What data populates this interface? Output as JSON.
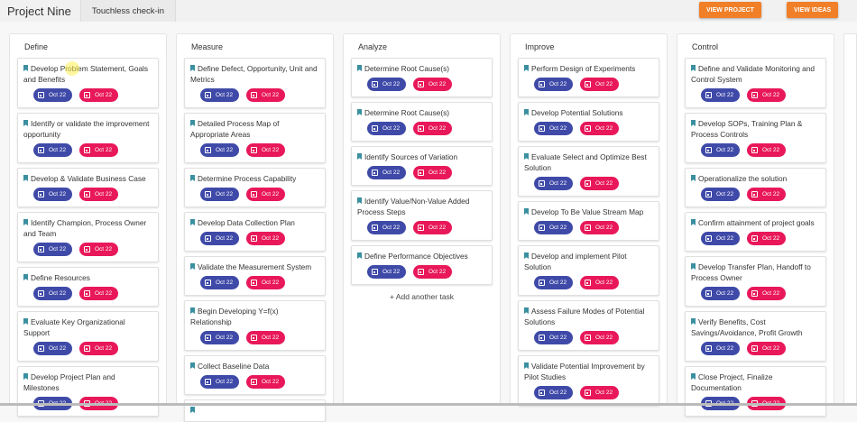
{
  "header": {
    "project": "Project Nine",
    "tab": "Touchless check-in",
    "view_project": "VIEW PROJECT",
    "view_ideas": "VIEW IDEAS"
  },
  "colors": {
    "accent": "#f07f28",
    "start_chip": "#3f4aa8",
    "end_chip": "#e8185a"
  },
  "columns": [
    {
      "name": "Define",
      "cards": [
        "Develop Problem Statement, Goals and Benefits",
        "Identify or validate the improvement opportunity",
        "Develop & Validate Business Case",
        "Identify Champion, Process Owner and Team",
        "Define Resources",
        "Evaluate Key Organizational Support",
        "Develop Project Plan and Milestones"
      ]
    },
    {
      "name": "Measure",
      "cards": [
        "Define Defect, Opportunity, Unit and Metrics",
        "Detailed Process Map of Appropriate Areas",
        "Determine Process Capability",
        "Develop Data Collection Plan",
        "Validate the Measurement System",
        "Begin Developing Y=f(x) Relationship",
        "Collect Baseline Data",
        ""
      ]
    },
    {
      "name": "Analyze",
      "cards": [
        "Determine Root Cause(s)",
        "Determine Root Cause(s)",
        "Identify Sources of Variation",
        "Identify Value/Non-Value Added Process Steps",
        "Define Performance Objectives"
      ],
      "add": "+ Add another task"
    },
    {
      "name": "Improve",
      "cards": [
        "Perform Design of Experiments",
        "Develop Potential Solutions",
        "Evaluate Select and Optimize Best Solution",
        "Develop To Be Value Stream Map",
        "Develop and implement Pilot Solution",
        "Assess Failure Modes of Potential Solutions",
        "Validate Potential Improvement by Pilot Studies"
      ]
    },
    {
      "name": "Control",
      "cards": [
        "Define and Validate Monitoring and Control System",
        "Develop SOPs, Training Plan & Process Controls",
        "Operationalize the solution",
        "Confirm attainment of project goals",
        "Develop Transfer Plan, Handoff to Process Owner",
        "Verify Benefits, Cost Savings/Avoidance, Profit Growth",
        "Close Project, Finalize Documentation"
      ]
    }
  ],
  "chip": {
    "start": "Oct 22",
    "end": "Oct 22"
  }
}
